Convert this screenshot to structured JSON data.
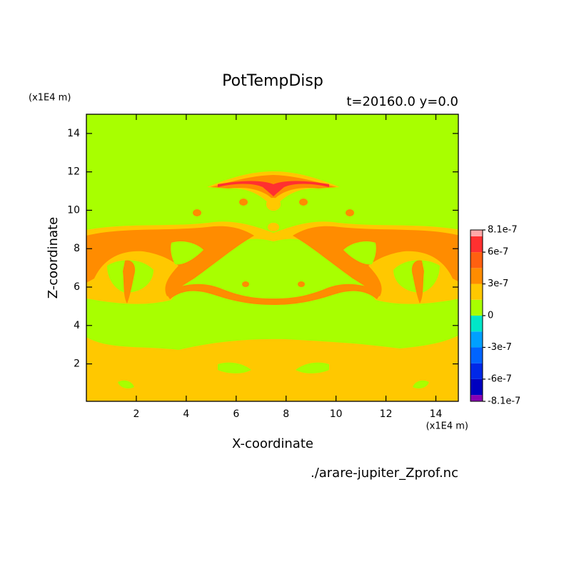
{
  "chart_data": {
    "type": "contour",
    "title": "PotTempDisp",
    "subtitle": "t=20160.0 y=0.0",
    "xlabel": "X-coordinate",
    "ylabel": "Z-coordinate",
    "xunit": "(x1E4 m)",
    "yunit": "(x1E4 m)",
    "source": "./arare-jupiter_Zprof.nc",
    "xlim": [
      0,
      14.9
    ],
    "ylim": [
      0.05,
      15.0
    ],
    "xticks": [
      2,
      4,
      6,
      8,
      10,
      12,
      14
    ],
    "yticks": [
      2,
      4,
      6,
      8,
      10,
      12,
      14
    ],
    "levels": [
      -8.1e-07,
      -7.5e-07,
      -6e-07,
      -4.5e-07,
      -3e-07,
      -1.5e-07,
      0,
      1.5e-07,
      3e-07,
      4.5e-07,
      6e-07,
      7.5e-07,
      8.1e-07
    ],
    "colors": [
      "#8a00b4",
      "#0000c0",
      "#0028e8",
      "#0064ff",
      "#00a0ff",
      "#00e6c8",
      "#a8ff00",
      "#ffc800",
      "#ff8c00",
      "#ff6010",
      "#ff3030",
      "#ffa8a8"
    ],
    "colorbar_ticks": [
      8.1e-07,
      6e-07,
      3e-07,
      0,
      -3e-07,
      -6e-07,
      -8.1e-07
    ]
  }
}
